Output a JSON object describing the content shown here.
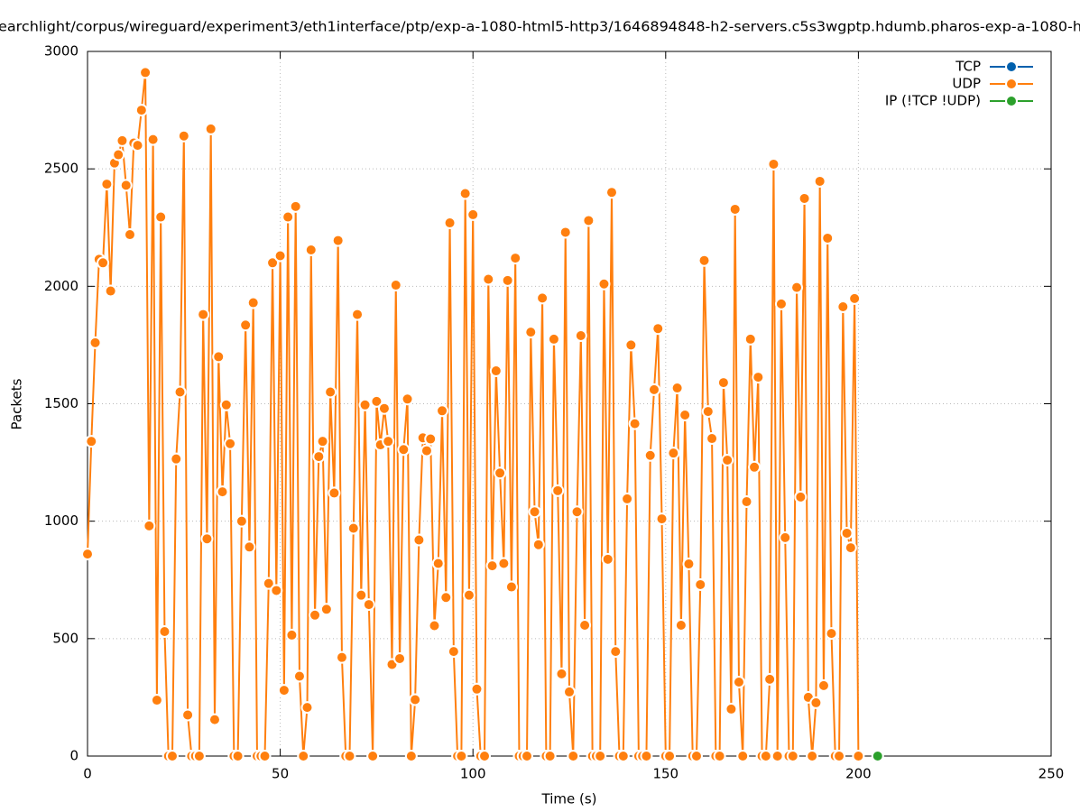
{
  "chart_data": {
    "type": "line",
    "title": "earchlight/corpus/wireguard/experiment3/eth1interface/ptp/exp-a-1080-html5-http3/1646894848-h2-servers.c5s3wgptp.hdumb.pharos-exp-a-1080-h",
    "xlabel": "Time (s)",
    "ylabel": "Packets",
    "xlim": [
      0,
      250
    ],
    "xticks": [
      0,
      50,
      100,
      150,
      200,
      250
    ],
    "ylim": [
      0,
      3000
    ],
    "yticks": [
      0,
      500,
      1000,
      1500,
      2000,
      2500,
      3000
    ],
    "grid": true,
    "legend": "top-right",
    "series": [
      {
        "name": "TCP",
        "color": "#0060ad",
        "x": [],
        "values": []
      },
      {
        "name": "UDP",
        "color": "#ff7f0e",
        "x": [
          0,
          1,
          2,
          3,
          4,
          5,
          6,
          7,
          8,
          9,
          10,
          11,
          12,
          13,
          14,
          15,
          16,
          17,
          18,
          19,
          20,
          21,
          22,
          23,
          24,
          25,
          26,
          27,
          28,
          29,
          30,
          31,
          32,
          33,
          34,
          35,
          36,
          37,
          38,
          39,
          40,
          41,
          42,
          43,
          44,
          45,
          46,
          47,
          48,
          49,
          50,
          51,
          52,
          53,
          54,
          55,
          56,
          57,
          58,
          59,
          60,
          61,
          62,
          63,
          64,
          65,
          66,
          67,
          68,
          69,
          70,
          71,
          72,
          73,
          74,
          75,
          76,
          77,
          78,
          79,
          80,
          81,
          82,
          83,
          84,
          85,
          86,
          87,
          88,
          89,
          90,
          91,
          92,
          93,
          94,
          95,
          96,
          97,
          98,
          99,
          100,
          101,
          102,
          103,
          104,
          105,
          106,
          107,
          108,
          109,
          110,
          111,
          112,
          113,
          114,
          115,
          116,
          117,
          118,
          119,
          120,
          121,
          122,
          123,
          124,
          125,
          126,
          127,
          128,
          129,
          130,
          131,
          132,
          133,
          134,
          135,
          136,
          137,
          138,
          139,
          140,
          141,
          142,
          143,
          144,
          145,
          146,
          147,
          148,
          149,
          150,
          151,
          152,
          153,
          154,
          155,
          156,
          157,
          158,
          159,
          160,
          161,
          162,
          163,
          164,
          165,
          166,
          167,
          168,
          169,
          170,
          171,
          172,
          173,
          174,
          175,
          176,
          177,
          178,
          179,
          180,
          181,
          182,
          183,
          184,
          185,
          186,
          187,
          188,
          189,
          190,
          191,
          192,
          193,
          194,
          195,
          196,
          197,
          198,
          199,
          200
        ],
        "values": [
          860,
          1340,
          1760,
          2115,
          2100,
          2435,
          1980,
          2525,
          2560,
          2620,
          2430,
          2220,
          2610,
          2600,
          2750,
          2910,
          980,
          2625,
          238,
          2295,
          530,
          0,
          0,
          1265,
          1550,
          2640,
          175,
          0,
          0,
          0,
          1880,
          925,
          2670,
          155,
          1700,
          1125,
          1495,
          1330,
          0,
          0,
          1000,
          1835,
          890,
          1930,
          0,
          0,
          0,
          735,
          2100,
          705,
          2130,
          280,
          2295,
          515,
          2340,
          340,
          0,
          207,
          2155,
          600,
          1275,
          1340,
          625,
          1550,
          1120,
          2195,
          420,
          0,
          0,
          970,
          1880,
          685,
          1495,
          645,
          0,
          1510,
          1325,
          1480,
          1340,
          390,
          2005,
          415,
          1305,
          1520,
          0,
          240,
          920,
          1355,
          1300,
          1350,
          555,
          820,
          1470,
          675,
          2270,
          445,
          0,
          0,
          2395,
          685,
          2305,
          285,
          0,
          0,
          2030,
          810,
          1640,
          1205,
          820,
          2025,
          720,
          2120,
          0,
          0,
          0,
          1805,
          1040,
          900,
          1950,
          0,
          0,
          1775,
          1130,
          350,
          2230,
          273,
          0,
          1040,
          1790,
          557,
          2280,
          0,
          0,
          0,
          2010,
          838,
          2400,
          445,
          0,
          0,
          1095,
          1750,
          1415,
          0,
          0,
          0,
          1280,
          1560,
          1820,
          1010,
          0,
          0,
          1290,
          1567,
          557,
          1452,
          818,
          0,
          0,
          730,
          2110,
          1467,
          1352,
          0,
          0,
          1590,
          1260,
          200,
          2328,
          315,
          0,
          1083,
          1775,
          1230,
          1613,
          0,
          0,
          327,
          2520,
          0,
          1925,
          930,
          0,
          0,
          1995,
          1103,
          2374,
          250,
          0,
          227,
          2447,
          300,
          2205,
          522,
          0,
          0,
          1913,
          949,
          887,
          1948,
          0
        ]
      },
      {
        "name": "IP (!TCP  !UDP)",
        "color": "#2ca02c",
        "x": [
          205
        ],
        "values": [
          0
        ]
      }
    ]
  }
}
